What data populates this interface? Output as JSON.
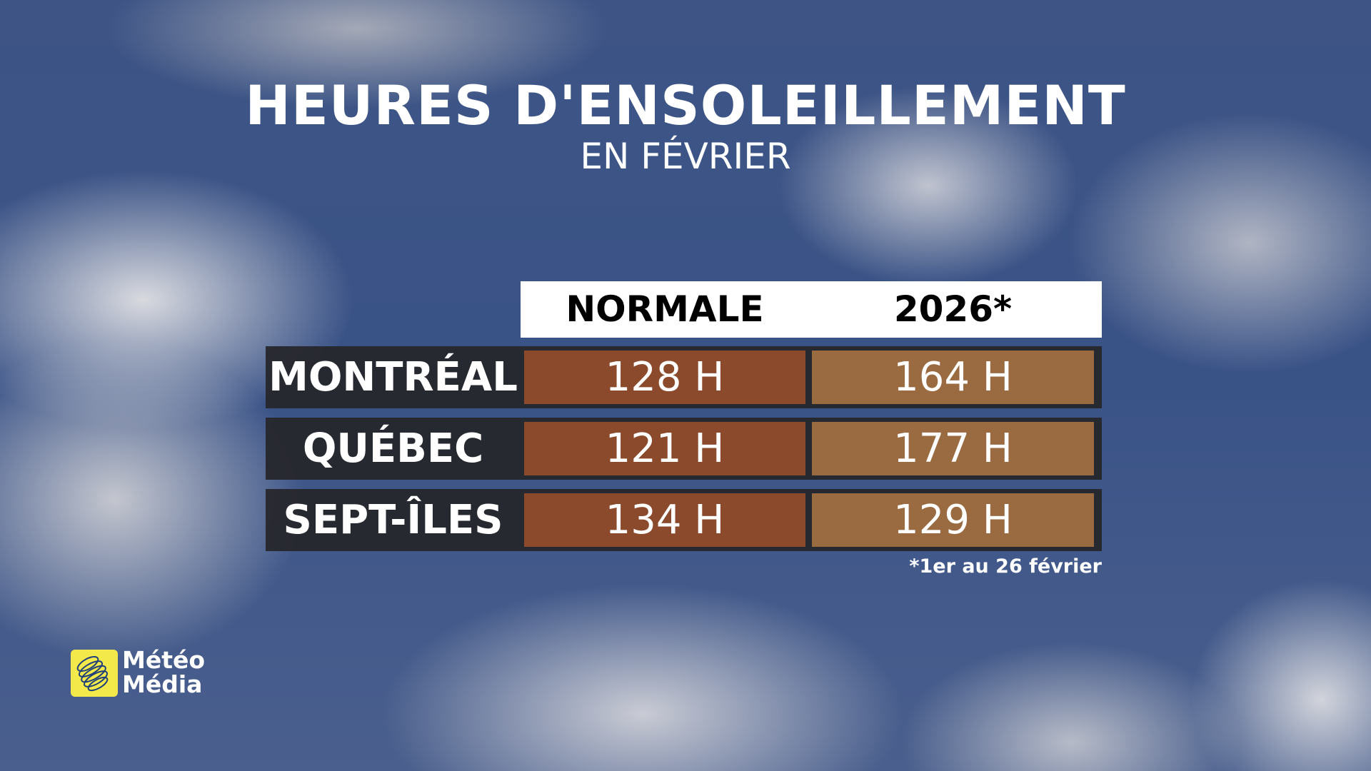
{
  "title": "HEURES D'ENSOLEILLEMENT",
  "subtitle": "EN FÉVRIER",
  "table": {
    "columns": [
      "NORMALE",
      "2026*"
    ],
    "rows": [
      {
        "city": "MONTRÉAL",
        "normale": "128 H",
        "y2026": "164 H"
      },
      {
        "city": "QUÉBEC",
        "normale": "121 H",
        "y2026": "177 H"
      },
      {
        "city": "SEPT-ÎLES",
        "normale": "134 H",
        "y2026": "129 H"
      }
    ],
    "footnote": "*1er au 26 février"
  },
  "colors": {
    "normale": "#8a4a2b",
    "y2026": "#9a6a40",
    "row_bg": "#26262a",
    "logo": "#f4e94a"
  },
  "logo": {
    "line1": "Météo",
    "line2": "Média"
  }
}
